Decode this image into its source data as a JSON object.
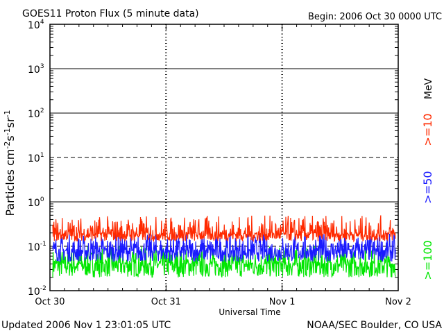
{
  "header": {
    "title": "GOES11 Proton Flux (5 minute data)",
    "begin": "Begin: 2006 Oct 30 0000 UTC"
  },
  "footer": {
    "updated": "Updated 2006 Nov  1 23:01:05 UTC",
    "credit": "NOAA/SEC Boulder, CO USA"
  },
  "legend": {
    "unit": "MeV",
    "items": [
      {
        "label": ">=10",
        "color": "#ff2a00"
      },
      {
        "label": ">=50",
        "color": "#1a1aff"
      },
      {
        "label": ">=100",
        "color": "#00e600"
      }
    ]
  },
  "chart_data": {
    "type": "line",
    "title": "GOES11 Proton Flux (5 minute data)",
    "xlabel": "Universal Time",
    "ylabel": "Particles cm-2s-1sr-1",
    "yscale": "log",
    "ylim": [
      0.01,
      10000
    ],
    "yticks": [
      {
        "base": "10",
        "exp": "4"
      },
      {
        "base": "10",
        "exp": "3"
      },
      {
        "base": "10",
        "exp": "2"
      },
      {
        "base": "10",
        "exp": "1"
      },
      {
        "base": "10",
        "exp": "0"
      },
      {
        "base": "10",
        "exp": "-1"
      },
      {
        "base": "10",
        "exp": "-2"
      }
    ],
    "xticks": [
      "Oct 30",
      "Oct 31",
      "Nov 1",
      "Nov 2"
    ],
    "grid": true,
    "series": [
      {
        "name": ">=10",
        "color": "#ff2a00",
        "level": 0.19,
        "low": 0.13,
        "high": 0.5
      },
      {
        "name": ">=50",
        "color": "#1a1aff",
        "level": 0.08,
        "low": 0.045,
        "high": 0.2
      },
      {
        "name": ">=100",
        "color": "#00e600",
        "level": 0.04,
        "low": 0.02,
        "high": 0.1
      }
    ]
  }
}
